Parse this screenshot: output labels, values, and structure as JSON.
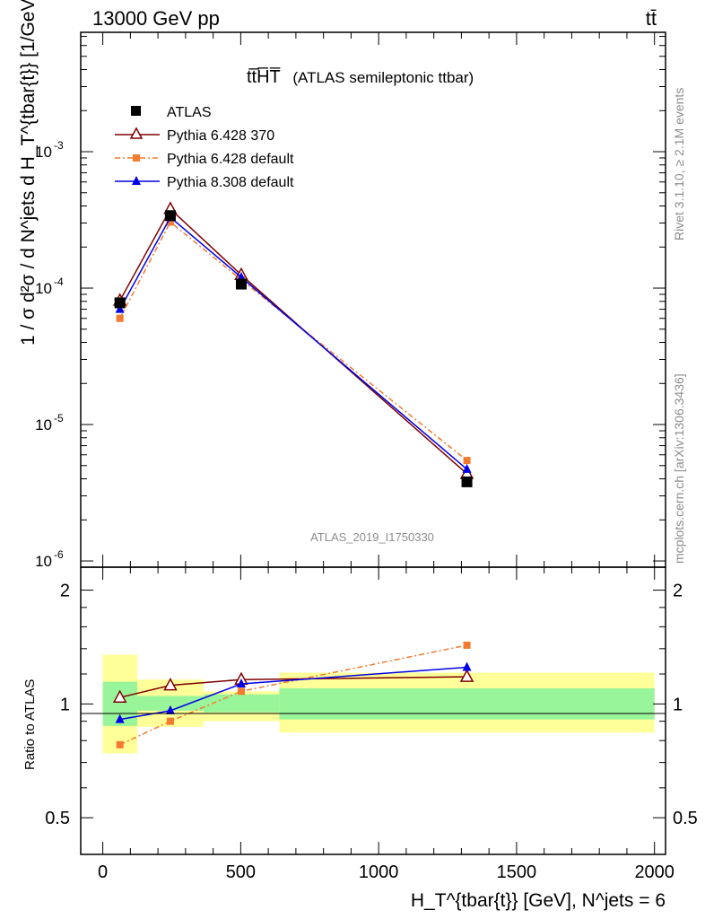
{
  "header": {
    "left": "13000 GeV pp",
    "right": "tt̄"
  },
  "title": {
    "main": "tt̅H̅T̅",
    "paren": "(ATLAS semileptonic ttbar)"
  },
  "watermark": "ATLAS_2019_I1750330",
  "side_labels": {
    "rivet": "Rivet 3.1.10, ≥ 2.1M events",
    "mcplots": "mcplots.cern.ch [arXiv:1306.3436]"
  },
  "axes": {
    "ylabel_main": "1 / σ d²σ / d N^jets d H_T^{tbar{t}} [1/GeV]",
    "ylabel_ratio": "Ratio to ATLAS",
    "xlabel": "H_T^{tbar{t}} [GeV], N^jets = 6",
    "main_yticks": [
      "10",
      "10",
      "10",
      "10"
    ],
    "main_ytick_exps": [
      "-3",
      "-4",
      "-5",
      "-6"
    ],
    "ratio_yticks": [
      "2",
      "1",
      "0.5"
    ],
    "xticks": [
      "0",
      "500",
      "1000",
      "1500",
      "2000"
    ]
  },
  "legend": [
    {
      "name": "ATLAS",
      "color": "#000000",
      "marker": "square-filled"
    },
    {
      "name": "Pythia 6.428 370",
      "color": "#7f0000",
      "marker": "triangle-open"
    },
    {
      "name": "Pythia 6.428 default",
      "color": "#f47a30",
      "marker": "square-filled"
    },
    {
      "name": "Pythia 8.308 default",
      "color": "#0000e6",
      "marker": "triangle-filled"
    }
  ],
  "chart_data": {
    "type": "line",
    "x_scale": "linear",
    "y_scale": "log",
    "xlim": [
      -80,
      2040
    ],
    "ylim": [
      9e-07,
      0.0075
    ],
    "ratio_ylim": [
      0.4,
      2.3
    ],
    "ratio_scale": "log",
    "bins": [
      [
        0,
        125
      ],
      [
        125,
        365
      ],
      [
        365,
        640
      ],
      [
        640,
        2000
      ]
    ],
    "x": [
      62,
      245,
      502,
      1320
    ],
    "series": [
      {
        "name": "ATLAS",
        "values": [
          7.8e-05,
          0.00034,
          0.000107,
          3.8e-06
        ],
        "ratio": [
          1,
          1,
          1,
          1
        ],
        "band_inner": [
          [
            0.875,
            1.145
          ],
          [
            0.96,
            1.05
          ],
          [
            0.95,
            1.06
          ],
          [
            0.91,
            1.1
          ]
        ],
        "band_outer": [
          [
            0.74,
            1.35
          ],
          [
            0.87,
            1.16
          ],
          [
            0.9,
            1.08
          ],
          [
            0.84,
            1.21
          ]
        ]
      },
      {
        "name": "Pythia 6.428 370",
        "values": [
          8.1e-05,
          0.00038,
          0.000125,
          4.35e-06
        ],
        "ratio": [
          1.04,
          1.12,
          1.16,
          1.18
        ]
      },
      {
        "name": "Pythia 6.428 default",
        "values": [
          6e-05,
          0.000305,
          0.000115,
          5.45e-06
        ],
        "ratio": [
          0.78,
          0.9,
          1.08,
          1.43
        ]
      },
      {
        "name": "Pythia 8.308 default",
        "values": [
          7e-05,
          0.00033,
          0.00012,
          4.7e-06
        ],
        "ratio": [
          0.91,
          0.96,
          1.13,
          1.25
        ]
      }
    ]
  }
}
